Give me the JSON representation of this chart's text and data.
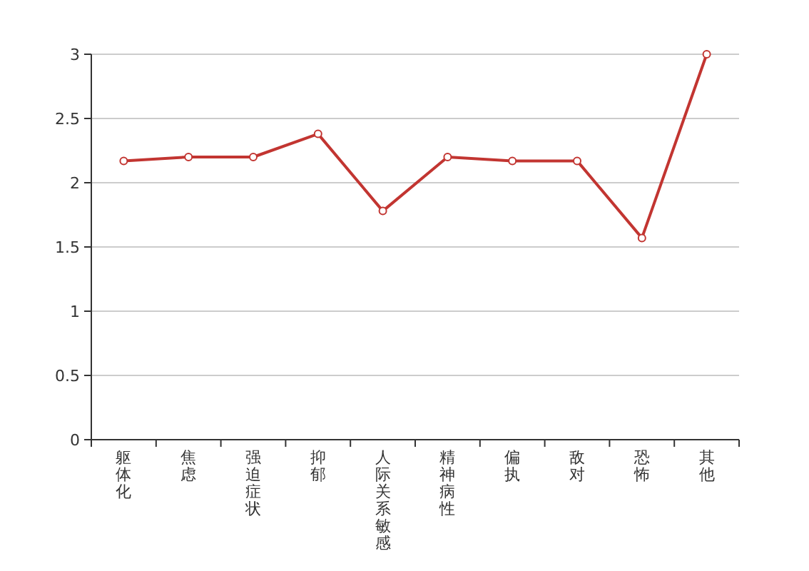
{
  "chart_data": {
    "type": "line",
    "categories": [
      "躯体化",
      "焦虑",
      "强迫症状",
      "抑郁",
      "人际关系敏感",
      "精神病性",
      "偏执",
      "敌对",
      "恐怖",
      "其他"
    ],
    "series": [
      {
        "color": "#c23531",
        "values": [
          2.17,
          2.2,
          2.2,
          2.38,
          1.78,
          2.2,
          2.17,
          2.17,
          1.57,
          3
        ]
      }
    ],
    "ylim": [
      0,
      3
    ],
    "yticks": [
      0,
      {
        "value": 0.5,
        "label": "0.5"
      },
      1,
      {
        "value": 1.5,
        "label": "1.5"
      },
      2,
      {
        "value": 2.5,
        "label": "2.5"
      },
      3
    ],
    "grid": "y",
    "marker": "circle",
    "line_style": "solid"
  }
}
